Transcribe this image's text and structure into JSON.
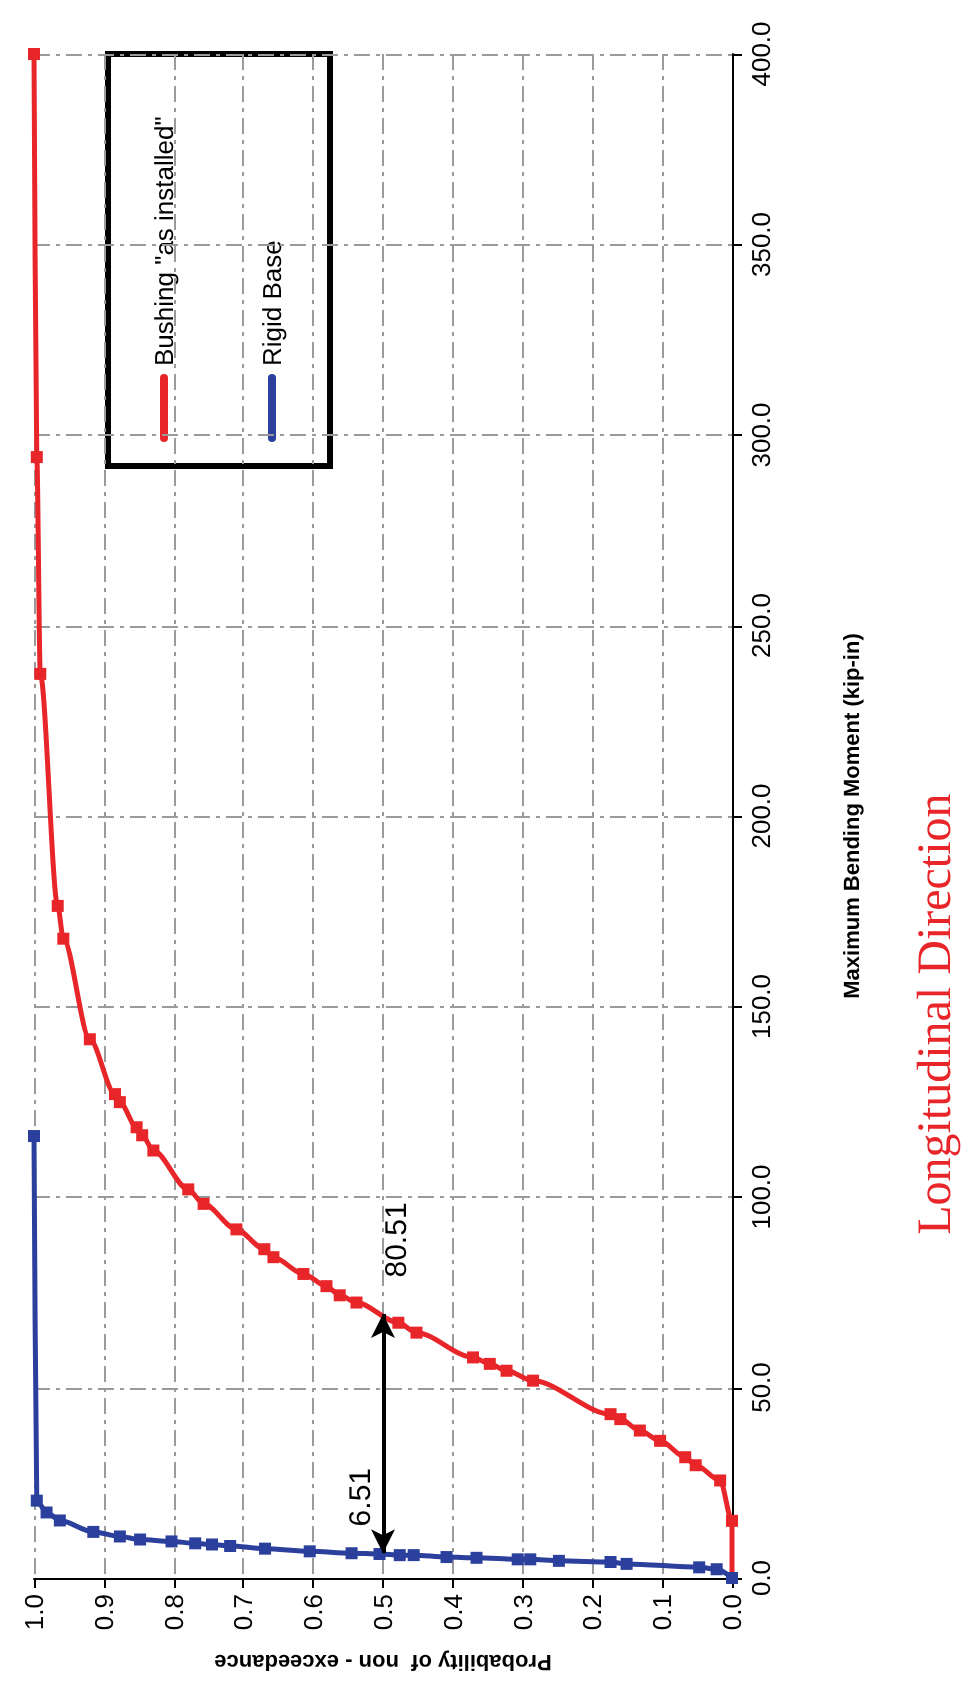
{
  "chart_data": {
    "type": "line",
    "title": "Longitudinal Direction",
    "xlabel": "Probability of  non - exceedance",
    "ylabel": "Maximum Bending Moment (kip-in)",
    "series": [
      {
        "name": "Bushing \"as installed\"",
        "color": "#e8262a",
        "x": [
          0,
          0,
          0.017,
          0.052,
          0.067,
          0.103,
          0.132,
          0.16,
          0.174,
          0.285,
          0.323,
          0.347,
          0.371,
          0.452,
          0.478,
          0.538,
          0.562,
          0.581,
          0.614,
          0.657,
          0.67,
          0.71,
          0.757,
          0.779,
          0.829,
          0.845,
          0.853,
          0.877,
          0.884,
          0.92,
          0.958,
          0.966,
          0.991,
          0.996,
          1.0
        ],
        "values": [
          0,
          15,
          25.6,
          29.6,
          31.7,
          36,
          38.7,
          41.7,
          43,
          51.8,
          54.4,
          56.2,
          57.9,
          64.4,
          67,
          72.3,
          74.2,
          76.6,
          79.8,
          84.2,
          86.3,
          91.5,
          98.2,
          102,
          112.2,
          116.2,
          118.3,
          124.9,
          127,
          141.4,
          167.8,
          176.4,
          237.3,
          294.2,
          400
        ]
      },
      {
        "name": "Rigid Base",
        "color": "#2b3f9c",
        "x": [
          0,
          0.022,
          0.047,
          0.151,
          0.174,
          0.248,
          0.289,
          0.307,
          0.366,
          0.409,
          0.456,
          0.476,
          0.505,
          0.545,
          0.605,
          0.669,
          0.719,
          0.745,
          0.769,
          0.803,
          0.848,
          0.877,
          0.915,
          0.963,
          0.982,
          0.996,
          1.0
        ],
        "values": [
          0,
          2.3,
          2.8,
          3.7,
          4.2,
          4.5,
          4.9,
          4.9,
          5.3,
          5.5,
          6.0,
          6.0,
          6.3,
          6.5,
          7.0,
          7.7,
          8.4,
          8.8,
          9.1,
          9.6,
          10.1,
          10.9,
          12.1,
          15.1,
          17.2,
          20.3,
          116
        ]
      }
    ],
    "xlim": [
      1.0,
      0.0
    ],
    "xticks": [
      {
        "value": 1.0,
        "label": "1.0"
      },
      {
        "value": 0.9,
        "label": "0.9"
      },
      {
        "value": 0.8,
        "label": "0.8"
      },
      {
        "value": 0.7,
        "label": "0.7"
      },
      {
        "value": 0.6,
        "label": "0.6"
      },
      {
        "value": 0.5,
        "label": "0.5"
      },
      {
        "value": 0.4,
        "label": "0.4"
      },
      {
        "value": 0.3,
        "label": "0.3"
      },
      {
        "value": 0.2,
        "label": "0.2"
      },
      {
        "value": 0.1,
        "label": "0.1"
      },
      {
        "value": 0,
        "label": "0.0"
      }
    ],
    "ylim": [
      0,
      400
    ],
    "yticks": [
      {
        "value": 0,
        "label": "0.0"
      },
      {
        "value": 50,
        "label": "50.0"
      },
      {
        "value": 100,
        "label": "100.0"
      },
      {
        "value": 150,
        "label": "150.0"
      },
      {
        "value": 200,
        "label": "200.0"
      },
      {
        "value": 250,
        "label": "250.0"
      },
      {
        "value": 300,
        "label": "300.0"
      },
      {
        "value": 350,
        "label": "350.0"
      },
      {
        "value": 400,
        "label": "400.0"
      }
    ],
    "annotations": [
      {
        "text": "6.51",
        "x": 0.5,
        "y": 6.51
      },
      {
        "text": "80.51",
        "x": 0.5,
        "y": 69.3
      }
    ],
    "grid": true,
    "legend": "top left",
    "marker": "square",
    "line_style": "solid"
  }
}
